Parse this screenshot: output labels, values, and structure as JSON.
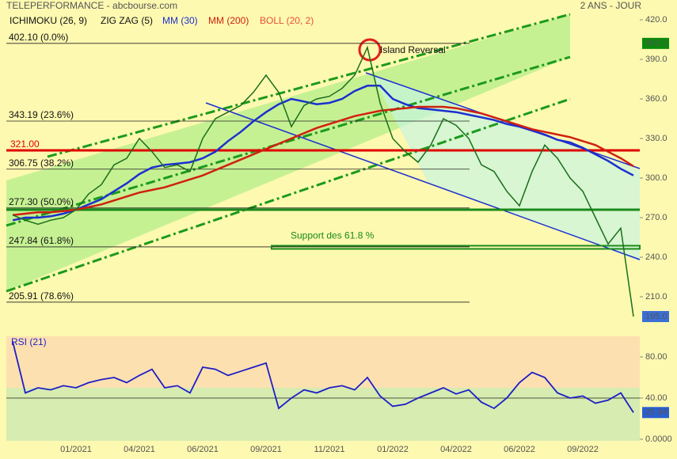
{
  "header": {
    "title": "TELEPERFORMANCE - abcbourse.com",
    "period": "2 ANS - JOUR"
  },
  "chart_data": [
    {
      "type": "line",
      "categories": [
        null,
        null,
        null,
        null,
        null,
        "01/2021",
        null,
        null,
        null,
        null,
        "04/2021",
        null,
        null,
        null,
        null,
        "06/2021",
        null,
        null,
        null,
        null,
        "09/2021",
        null,
        null,
        null,
        null,
        "11/2021",
        null,
        null,
        null,
        null,
        "01/2022",
        null,
        null,
        null,
        null,
        "04/2022",
        null,
        null,
        null,
        null,
        "06/2022",
        null,
        null,
        null,
        null,
        "09/2022",
        null,
        null,
        null,
        null
      ],
      "values": [
        272,
        268,
        265,
        268,
        270,
        276,
        288,
        295,
        310,
        315,
        330,
        320,
        308,
        310,
        305,
        330,
        345,
        350,
        355,
        365,
        378,
        365,
        339,
        355,
        360,
        362,
        368,
        378,
        399,
        357,
        330,
        320,
        312,
        325,
        345,
        340,
        330,
        310,
        305,
        290,
        279,
        305,
        325,
        315,
        300,
        290,
        270,
        250,
        262,
        195
      ],
      "color": "#1a6e1a",
      "series": [
        {
          "name": "MM (30)",
          "color": "#1c2fd0",
          "values": [
            268,
            270,
            270,
            271,
            273,
            276,
            280,
            284,
            290,
            296,
            303,
            308,
            310,
            311,
            312,
            315,
            320,
            328,
            335,
            343,
            350,
            356,
            360,
            358,
            356,
            357,
            360,
            366,
            370,
            370,
            360,
            356,
            353,
            352,
            351,
            350,
            348,
            346,
            344,
            341,
            339,
            336,
            333,
            329,
            327,
            323,
            318,
            313,
            307,
            302
          ]
        },
        {
          "name": "MM (200)",
          "color": "#d02010",
          "values": [
            272,
            273,
            274,
            274,
            275,
            276,
            278,
            280,
            283,
            286,
            289,
            291,
            293,
            296,
            299,
            302,
            306,
            310,
            314,
            318,
            322,
            326,
            330,
            334,
            338,
            341,
            344,
            347,
            349,
            351,
            352,
            353,
            354,
            354,
            354,
            353,
            351,
            349,
            346,
            343,
            340,
            337,
            335,
            333,
            331,
            328,
            325,
            320,
            315,
            309
          ]
        }
      ],
      "overlays": [
        {
          "name": "ICHIMOKU (26, 9)",
          "color": "#111111"
        },
        {
          "name": "ZIG ZAG (5)",
          "color": "#111111"
        },
        {
          "name": "BOLL (20, 2)",
          "color": "#e8503a"
        }
      ],
      "ylim": [
        192,
        423
      ],
      "yticks": [
        {
          "value": 210,
          "label": "210.0"
        },
        {
          "value": 240,
          "label": "240.0"
        },
        {
          "value": 270,
          "label": "270.0"
        },
        {
          "value": 300,
          "label": "300.0"
        },
        {
          "value": 330,
          "label": "330.0"
        },
        {
          "value": 360,
          "label": "360.0"
        },
        {
          "value": 390,
          "label": "390.0"
        },
        {
          "value": 420,
          "label": "420.0"
        }
      ],
      "levels": [
        {
          "value": 402.1,
          "label": "402.10  (0.0%)"
        },
        {
          "value": 343.19,
          "label": "343.19  (23.6%)"
        },
        {
          "value": 306.75,
          "label": "306.75  (38.2%)"
        },
        {
          "value": 277.3,
          "label": "277.30  (50.0%)"
        },
        {
          "value": 247.84,
          "label": "247.84  (61.8%)"
        },
        {
          "value": 205.91,
          "label": "205.91  (78.6%)"
        }
      ],
      "hlines": [
        {
          "value": 321,
          "label": "321.00",
          "color": "#e00000"
        },
        {
          "value": 276,
          "color": "#1a8a1a"
        }
      ],
      "support": {
        "value": 247.5,
        "label": "Support des 61.8 %",
        "color": "#1a8a1a"
      },
      "annotation": "Island Reversal",
      "price_tags": [
        {
          "value": 402.1,
          "label": "402.1",
          "color": "#0a8a0a"
        },
        {
          "value": 195,
          "label": "195.0",
          "color": "#3a6fd8"
        }
      ]
    },
    {
      "type": "line",
      "title": "RSI (21)",
      "color": "#1e1ec8",
      "values": [
        95,
        45,
        50,
        48,
        52,
        50,
        55,
        58,
        60,
        55,
        62,
        68,
        50,
        52,
        45,
        70,
        68,
        62,
        66,
        70,
        74,
        30,
        40,
        48,
        45,
        50,
        52,
        48,
        60,
        42,
        32,
        34,
        40,
        45,
        50,
        44,
        48,
        36,
        30,
        40,
        55,
        65,
        60,
        45,
        40,
        42,
        35,
        38,
        45,
        25.94
      ],
      "ylim": [
        0,
        100
      ],
      "yticks": [
        {
          "value": 0,
          "label": "0.0000"
        },
        {
          "value": 40,
          "label": "40.00"
        },
        {
          "value": 80,
          "label": "80.00"
        }
      ],
      "reference": 40,
      "tag": {
        "value": 25.94,
        "label": "25.94",
        "color": "#2a5fd0"
      }
    }
  ]
}
